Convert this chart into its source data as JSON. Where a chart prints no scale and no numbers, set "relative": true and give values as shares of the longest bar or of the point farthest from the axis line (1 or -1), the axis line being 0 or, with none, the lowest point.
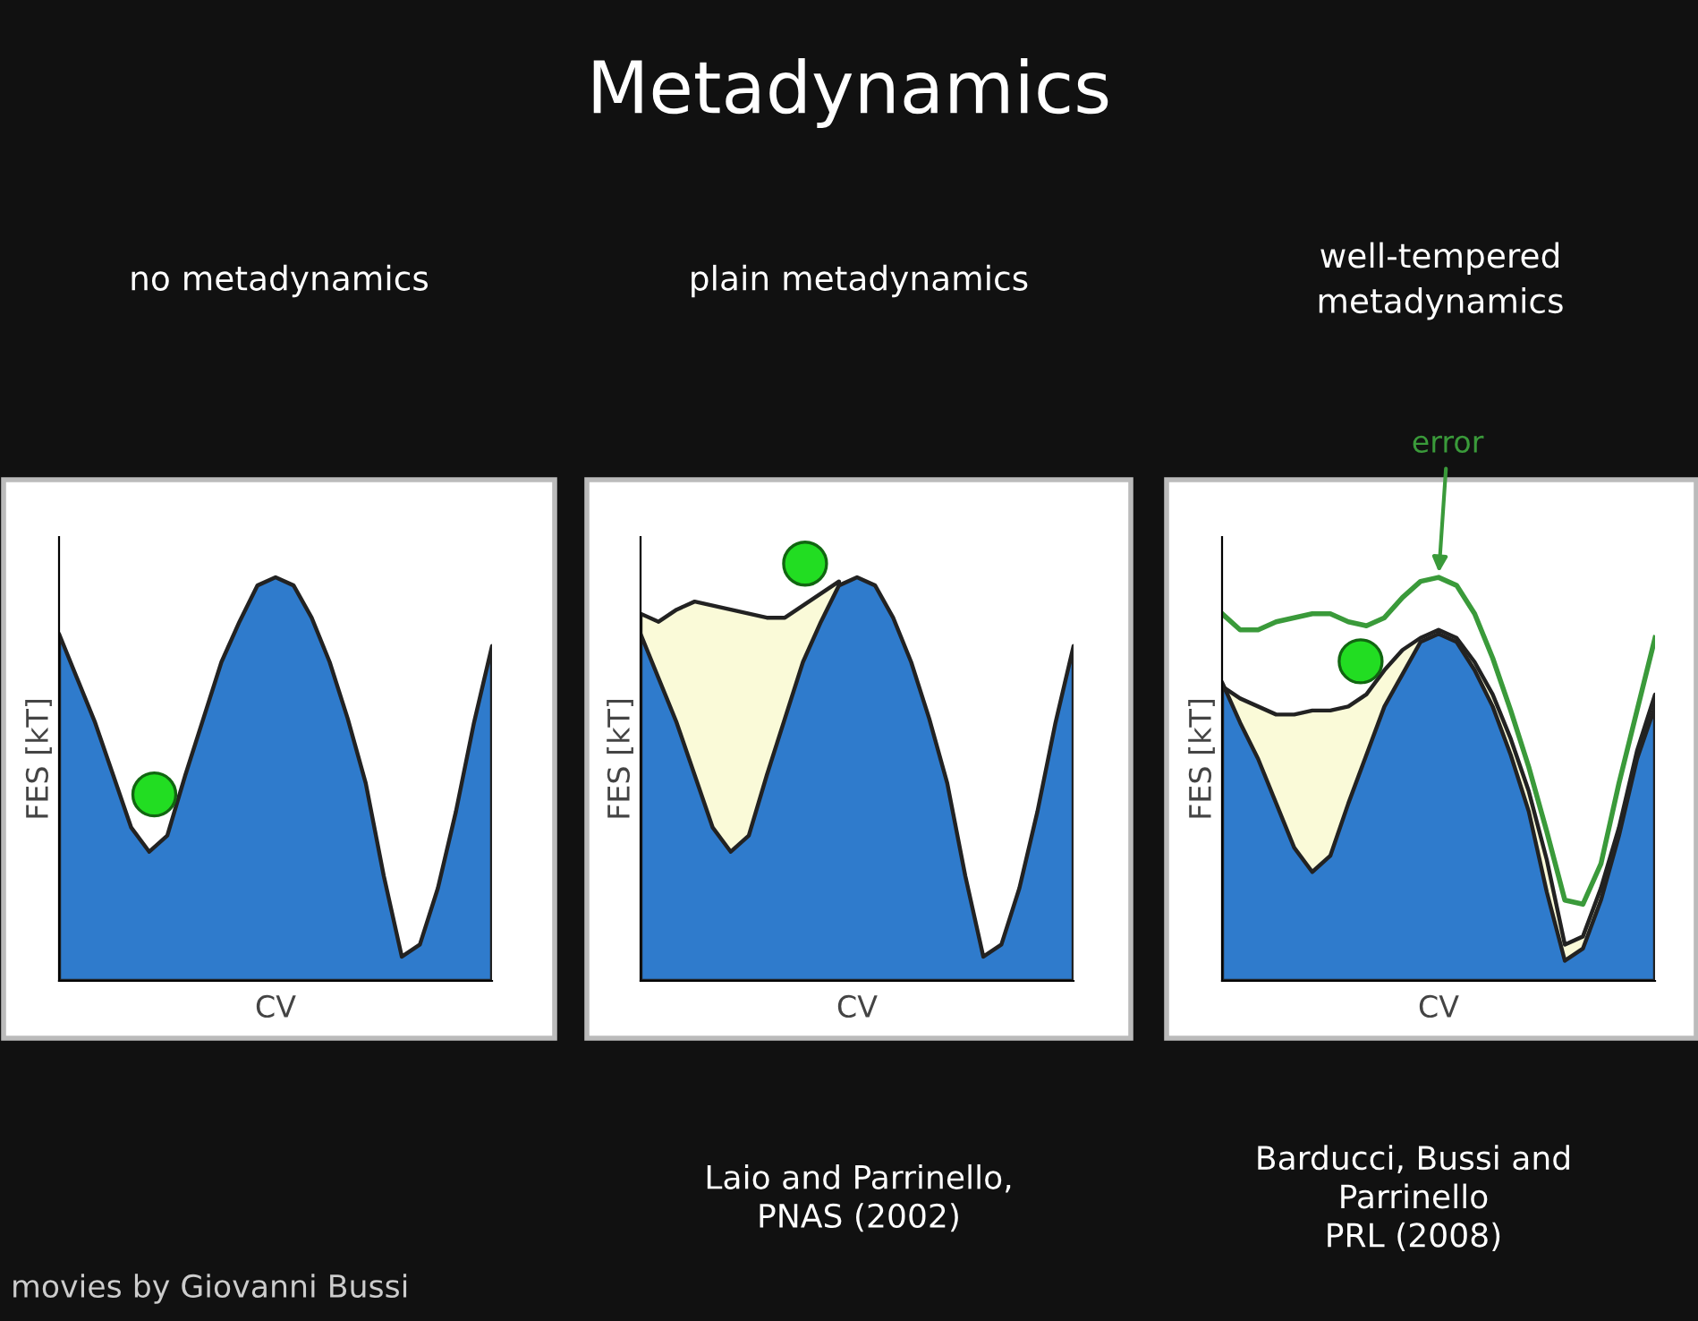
{
  "chart_data": [
    {
      "type": "other",
      "title": "Metadynamics",
      "annotations": [
        "movies by Giovanni Bussi"
      ]
    },
    {
      "type": "area",
      "title": "no metadynamics",
      "xlabel": "CV",
      "ylabel": "FES [kT]",
      "relative": true,
      "categories": [
        null,
        null,
        null,
        null,
        null,
        null,
        null,
        null,
        null,
        null,
        null,
        null,
        null,
        null,
        null,
        null,
        null,
        null,
        null,
        null,
        null,
        null,
        null,
        null,
        null
      ],
      "series": [
        {
          "type": "area",
          "color": "#2f7bcc",
          "values": [
            0.86,
            0.75,
            0.64,
            0.51,
            0.38,
            0.32,
            0.36,
            0.51,
            0.65,
            0.79,
            0.89,
            0.98,
            1,
            0.98,
            0.9,
            0.79,
            0.65,
            0.49,
            0.26,
            0.06,
            0.09,
            0.23,
            0.42,
            0.64,
            0.83
          ]
        }
      ]
    },
    {
      "type": "area",
      "title": "plain metadynamics",
      "xlabel": "CV",
      "ylabel": "FES [kT]",
      "relative": true,
      "annotations": [
        "Laio and Parrinello,\nPNAS (2002)"
      ],
      "categories": [
        null,
        null,
        null,
        null,
        null,
        null,
        null,
        null,
        null,
        null,
        null,
        null,
        null,
        null,
        null,
        null,
        null,
        null,
        null,
        null,
        null,
        null,
        null,
        null,
        null
      ],
      "series": [
        {
          "type": "area",
          "color": "#fafad8",
          "values": [
            0.91,
            0.89,
            0.92,
            0.94,
            0.93,
            0.92,
            0.91,
            0.9,
            0.9,
            0.93,
            0.96,
            0.99,
            null,
            null,
            null,
            null,
            null,
            null,
            null,
            null,
            null,
            null,
            null,
            null,
            null
          ]
        },
        {
          "type": "area",
          "color": "#2f7bcc",
          "values": [
            0.86,
            0.75,
            0.64,
            0.51,
            0.38,
            0.32,
            0.36,
            0.51,
            0.65,
            0.79,
            0.89,
            0.98,
            1,
            0.98,
            0.9,
            0.79,
            0.65,
            0.49,
            0.26,
            0.06,
            0.09,
            0.23,
            0.42,
            0.64,
            0.83
          ]
        }
      ]
    },
    {
      "type": "area",
      "title": "well-tempered\nmetadynamics",
      "xlabel": "CV",
      "ylabel": "FES [kT]",
      "relative": true,
      "annotations": [
        "error",
        "Barducci, Bussi and\nParrinello\nPRL (2008)"
      ],
      "categories": [
        null,
        null,
        null,
        null,
        null,
        null,
        null,
        null,
        null,
        null,
        null,
        null,
        null,
        null,
        null,
        null,
        null,
        null,
        null,
        null,
        null,
        null,
        null,
        null,
        null
      ],
      "series": [
        {
          "type": "area",
          "color": "#fafad8",
          "values": [
            0.73,
            0.7,
            0.68,
            0.66,
            0.66,
            0.67,
            0.67,
            0.68,
            0.71,
            0.77,
            0.82,
            0.85,
            0.87,
            0.85,
            0.79,
            0.71,
            0.6,
            0.47,
            0.3,
            0.09,
            0.11,
            0.23,
            0.38,
            0.57,
            0.71
          ]
        },
        {
          "type": "area",
          "color": "#2f7bcc",
          "values": [
            0.74,
            0.64,
            0.55,
            0.44,
            0.33,
            0.27,
            0.31,
            0.44,
            0.56,
            0.68,
            0.76,
            0.84,
            0.86,
            0.84,
            0.77,
            0.68,
            0.56,
            0.42,
            0.22,
            0.05,
            0.08,
            0.2,
            0.36,
            0.55,
            0.68
          ]
        },
        {
          "type": "line",
          "color": "#3a9a3a",
          "values": [
            0.91,
            0.87,
            0.87,
            0.89,
            0.9,
            0.91,
            0.91,
            0.89,
            0.88,
            0.9,
            0.95,
            0.99,
            1,
            0.98,
            0.91,
            0.8,
            0.67,
            0.53,
            0.37,
            0.2,
            0.19,
            0.29,
            0.49,
            0.67,
            0.85
          ]
        }
      ]
    }
  ]
}
